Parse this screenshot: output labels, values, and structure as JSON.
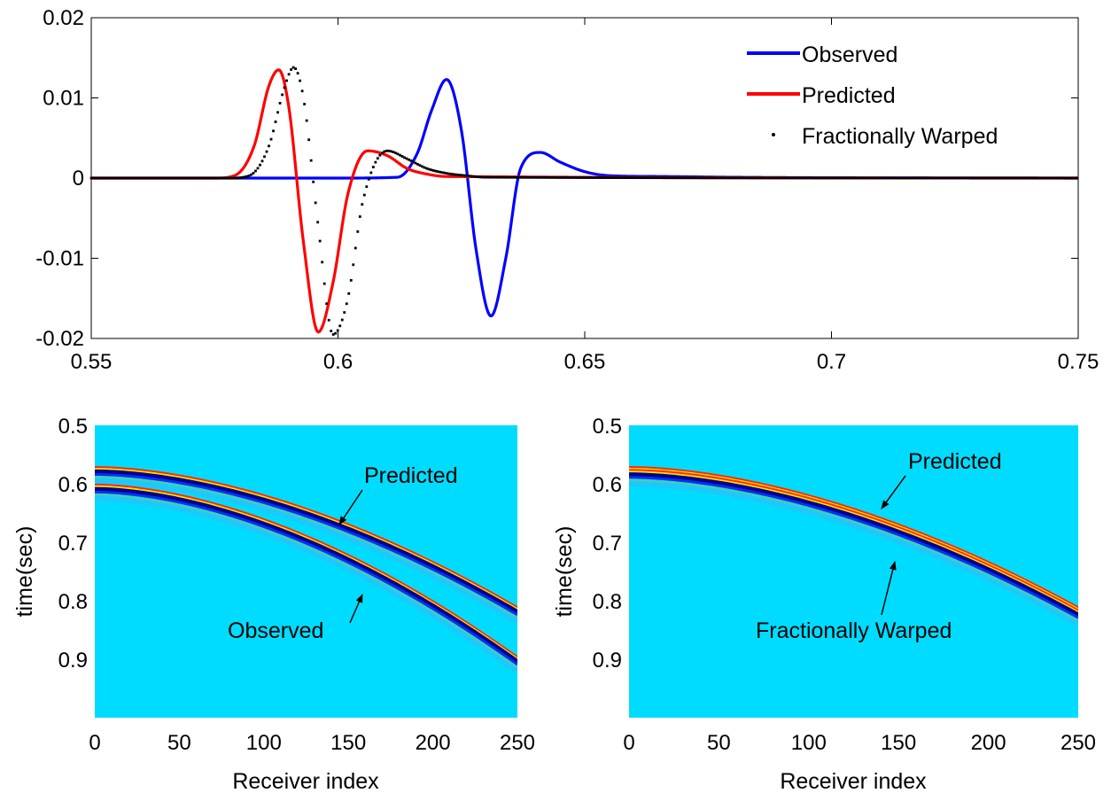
{
  "chart_data": [
    {
      "type": "line",
      "title": "",
      "xlabel": "",
      "ylabel": "",
      "xlim": [
        0.55,
        0.75
      ],
      "ylim": [
        -0.02,
        0.02
      ],
      "xticks": [
        "0.55",
        "0.6",
        "0.65",
        "0.7",
        "0.75"
      ],
      "yticks": [
        "0.02",
        "0.01",
        "0",
        "-0.01",
        "-0.02"
      ],
      "legend_position": "top-right",
      "series": [
        {
          "name": "Observed",
          "color": "#0000ff",
          "style": "solid",
          "x": [
            0.55,
            0.6,
            0.612,
            0.616,
            0.619,
            0.622,
            0.625,
            0.628,
            0.631,
            0.634,
            0.637,
            0.641,
            0.645,
            0.65,
            0.655,
            0.665,
            0.68,
            0.75
          ],
          "y": [
            0,
            0,
            0.0001,
            0.003,
            0.0085,
            0.0123,
            0.006,
            -0.009,
            -0.0172,
            -0.01,
            0.0012,
            0.0032,
            0.002,
            0.0008,
            0.0003,
            0.0002,
            0.0001,
            0
          ]
        },
        {
          "name": "Predicted",
          "color": "#ff0000",
          "style": "solid",
          "x": [
            0.55,
            0.575,
            0.579,
            0.583,
            0.586,
            0.588,
            0.59,
            0.593,
            0.596,
            0.599,
            0.602,
            0.606,
            0.61,
            0.614,
            0.618,
            0.622,
            0.75
          ],
          "y": [
            0,
            0,
            0.0003,
            0.004,
            0.0115,
            0.0135,
            0.009,
            -0.008,
            -0.0192,
            -0.013,
            -0.002,
            0.0034,
            0.0028,
            0.0012,
            0.0005,
            0.0002,
            0
          ]
        },
        {
          "name": "Fractionally Warped",
          "color": "#000000",
          "style": "dotted",
          "x": [
            0.55,
            0.578,
            0.582,
            0.586,
            0.589,
            0.591,
            0.593,
            0.596,
            0.599,
            0.602,
            0.605,
            0.61,
            0.614,
            0.618,
            0.622,
            0.626,
            0.63,
            0.75
          ],
          "y": [
            0,
            0,
            0.0003,
            0.004,
            0.011,
            0.0138,
            0.01,
            -0.006,
            -0.0195,
            -0.015,
            -0.003,
            0.0034,
            0.0024,
            0.0012,
            0.0006,
            0.0003,
            0.0001,
            0
          ]
        }
      ]
    },
    {
      "type": "heatmap",
      "title": "",
      "xlabel": "Receiver index",
      "ylabel": "time(sec)",
      "xlim": [
        0,
        250
      ],
      "ylim": [
        0.5,
        1.0
      ],
      "y_reversed": true,
      "xticks": [
        "0",
        "50",
        "100",
        "150",
        "200",
        "250"
      ],
      "yticks": [
        "0.5",
        "0.6",
        "0.7",
        "0.8",
        "0.9"
      ],
      "background_color": "#00dcff",
      "events": [
        {
          "name": "Predicted",
          "t0": 0.58,
          "t_end": 0.82,
          "label": "Predicted",
          "label_at": 165
        },
        {
          "name": "Observed",
          "t0": 0.61,
          "t_end": 0.905,
          "label": "Observed",
          "label_at": 155
        }
      ]
    },
    {
      "type": "heatmap",
      "title": "",
      "xlabel": "Receiver index",
      "ylabel": "time(sec)",
      "xlim": [
        0,
        250
      ],
      "ylim": [
        0.5,
        1.0
      ],
      "y_reversed": true,
      "xticks": [
        "0",
        "50",
        "100",
        "150",
        "200",
        "250"
      ],
      "yticks": [
        "0.5",
        "0.6",
        "0.7",
        "0.8",
        "0.9"
      ],
      "background_color": "#00dcff",
      "events": [
        {
          "name": "Predicted",
          "t0": 0.58,
          "t_end": 0.82,
          "label": "Predicted",
          "label_at": 150
        },
        {
          "name": "Fractionally Warped",
          "t0": 0.585,
          "t_end": 0.825,
          "label": "Fractionally Warped",
          "label_at": 150
        }
      ]
    }
  ]
}
